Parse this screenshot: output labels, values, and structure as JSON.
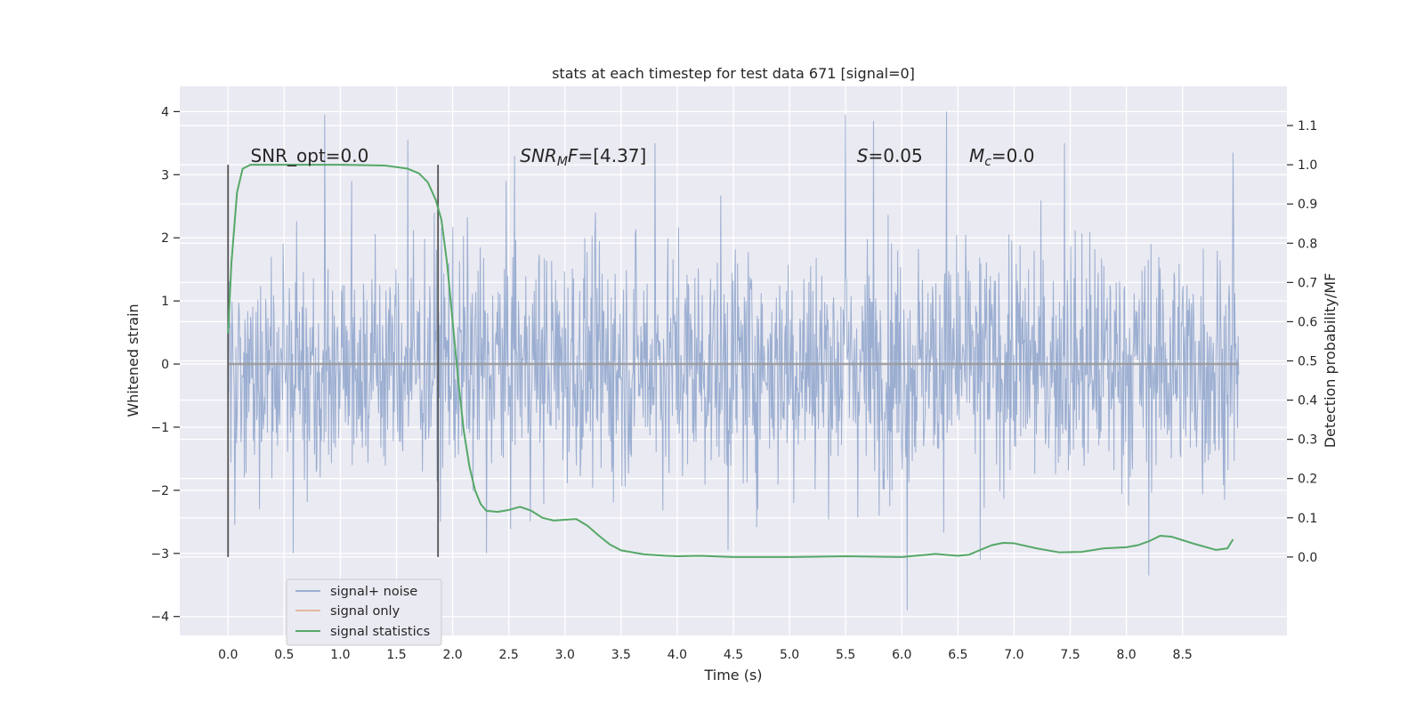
{
  "chart_data": {
    "type": "line",
    "title": "stats at each timestep for test data 671 [signal=0]",
    "xlabel": "Time (s)",
    "ylabel_left": "Whitened strain",
    "ylabel_right": "Detection probability/MF",
    "xlim": [
      -0.43,
      9.43
    ],
    "ylim_left": [
      -4.3,
      4.4
    ],
    "ylim_right": [
      -0.2,
      1.2
    ],
    "x_ticks": [
      0.0,
      0.5,
      1.0,
      1.5,
      2.0,
      2.5,
      3.0,
      3.5,
      4.0,
      4.5,
      5.0,
      5.5,
      6.0,
      6.5,
      7.0,
      7.5,
      8.0,
      8.5
    ],
    "x_tick_labels": [
      "0.0",
      "0.5",
      "1.0",
      "1.5",
      "2.0",
      "2.5",
      "3.0",
      "3.5",
      "4.0",
      "4.5",
      "5.0",
      "5.5",
      "6.0",
      "6.5",
      "7.0",
      "7.5",
      "8.0",
      "8.5"
    ],
    "y_left_ticks": [
      -4,
      -3,
      -2,
      -1,
      0,
      1,
      2,
      3,
      4
    ],
    "y_left_tick_labels": [
      "−4",
      "−3",
      "−2",
      "−1",
      "0",
      "1",
      "2",
      "3",
      "4"
    ],
    "y_right_ticks": [
      0.0,
      0.1,
      0.2,
      0.3,
      0.4,
      0.5,
      0.6,
      0.7,
      0.8,
      0.9,
      1.0,
      1.1
    ],
    "y_right_tick_labels": [
      "0.0",
      "0.1",
      "0.2",
      "0.3",
      "0.4",
      "0.5",
      "0.6",
      "0.7",
      "0.8",
      "0.9",
      "1.0",
      "1.1"
    ],
    "grid": true,
    "legend_placement": "lower-left",
    "series": [
      {
        "name": "signal+ noise",
        "axis": "left",
        "color": "#4c72b0",
        "noise_band": {
          "x_start": 0.0,
          "x_end": 9.0,
          "typical_range": [
            -1.3,
            1.3
          ],
          "sample_count": 1800
        },
        "peaks": [
          {
            "x": 0.86,
            "y": 3.95
          },
          {
            "x": 1.6,
            "y": 3.55
          },
          {
            "x": 2.55,
            "y": 3.3
          },
          {
            "x": 3.8,
            "y": 3.5
          },
          {
            "x": 5.5,
            "y": 3.95
          },
          {
            "x": 5.75,
            "y": 3.85
          },
          {
            "x": 6.4,
            "y": 4.0
          },
          {
            "x": 7.45,
            "y": 3.5
          },
          {
            "x": 8.95,
            "y": 3.35
          },
          {
            "x": 0.58,
            "y": -3.0
          },
          {
            "x": 2.3,
            "y": -3.0
          },
          {
            "x": 4.45,
            "y": -2.95
          },
          {
            "x": 6.05,
            "y": -3.9
          },
          {
            "x": 6.7,
            "y": -3.1
          },
          {
            "x": 8.2,
            "y": -3.35
          }
        ]
      },
      {
        "name": "signal only",
        "axis": "left",
        "color": "#dd8452",
        "x": [
          0.0,
          9.0
        ],
        "y": [
          0.0,
          0.0
        ]
      },
      {
        "name": "signal statistics",
        "axis": "right",
        "color": "#55a868",
        "x": [
          0.0,
          0.03,
          0.08,
          0.13,
          0.2,
          0.3,
          0.5,
          1.0,
          1.4,
          1.6,
          1.7,
          1.78,
          1.85,
          1.9,
          1.95,
          2.0,
          2.05,
          2.1,
          2.15,
          2.2,
          2.25,
          2.3,
          2.4,
          2.5,
          2.6,
          2.7,
          2.8,
          2.9,
          3.0,
          3.1,
          3.2,
          3.3,
          3.4,
          3.5,
          3.7,
          3.9,
          4.0,
          4.2,
          4.5,
          5.0,
          5.5,
          6.0,
          6.3,
          6.5,
          6.6,
          6.8,
          6.9,
          7.0,
          7.2,
          7.4,
          7.6,
          7.8,
          8.0,
          8.1,
          8.2,
          8.3,
          8.4,
          8.6,
          8.8,
          8.9,
          8.95
        ],
        "y": [
          0.57,
          0.75,
          0.93,
          0.99,
          1.0,
          1.0,
          1.0,
          1.0,
          0.998,
          0.99,
          0.978,
          0.955,
          0.91,
          0.86,
          0.75,
          0.6,
          0.45,
          0.32,
          0.23,
          0.17,
          0.135,
          0.118,
          0.115,
          0.12,
          0.128,
          0.118,
          0.1,
          0.093,
          0.095,
          0.097,
          0.08,
          0.055,
          0.032,
          0.017,
          0.007,
          0.003,
          0.002,
          0.003,
          0.0,
          0.0,
          0.002,
          0.0,
          0.008,
          0.003,
          0.006,
          0.03,
          0.036,
          0.035,
          0.022,
          0.012,
          0.013,
          0.022,
          0.025,
          0.03,
          0.04,
          0.054,
          0.052,
          0.034,
          0.018,
          0.022,
          0.045
        ]
      }
    ],
    "vertical_lines": [
      {
        "x": 0.0,
        "color": "#555555"
      },
      {
        "x": 1.87,
        "color": "#555555"
      }
    ],
    "annotations": [
      {
        "id": "snr-opt",
        "x": 0.2,
        "y": 3.2,
        "parts": [
          {
            "text": "SNR_opt=0.0",
            "style": "normal"
          }
        ]
      },
      {
        "id": "snr-mf",
        "x": 2.6,
        "y": 3.2,
        "parts": [
          {
            "text": "SNR",
            "style": "italic"
          },
          {
            "text": "M",
            "style": "sub"
          },
          {
            "text": "F",
            "style": "italic"
          },
          {
            "text": "=[4.37]",
            "style": "normal"
          }
        ]
      },
      {
        "id": "s-value",
        "x": 5.6,
        "y": 3.2,
        "parts": [
          {
            "text": "S",
            "style": "italic"
          },
          {
            "text": "=0.05",
            "style": "normal"
          }
        ]
      },
      {
        "id": "mc-value",
        "x": 6.6,
        "y": 3.2,
        "parts": [
          {
            "text": "M",
            "style": "italic"
          },
          {
            "text": "c",
            "style": "sub"
          },
          {
            "text": "=0.0",
            "style": "normal"
          }
        ]
      }
    ]
  }
}
